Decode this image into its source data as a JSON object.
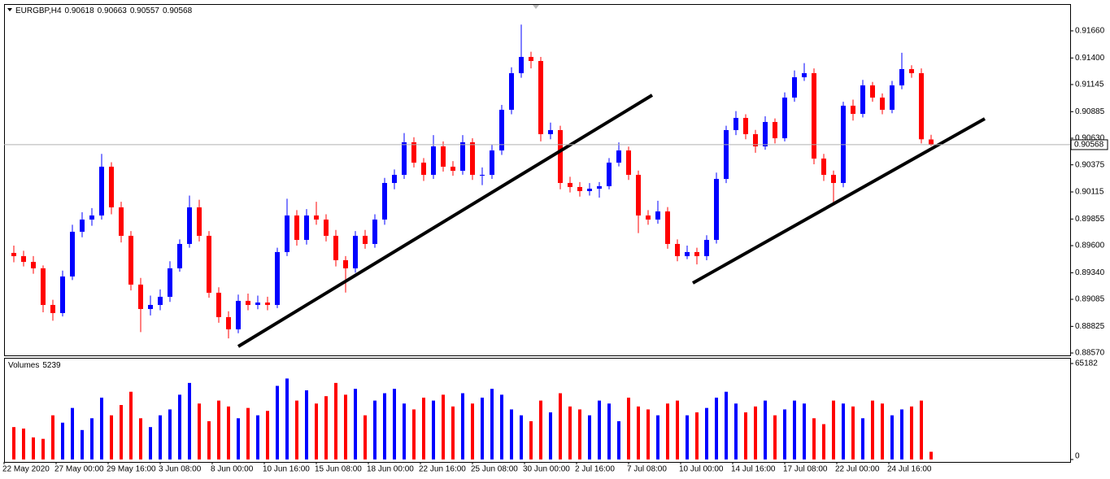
{
  "chart_data": {
    "type": "candlestick",
    "header": {
      "symbol": "EURGBP,H4",
      "values": [
        0.90618,
        0.90663,
        0.90557,
        0.90568
      ]
    },
    "up_color": "#0000ff",
    "down_color": "#ff0000",
    "ylim": [
      0.88547,
      0.91917
    ],
    "yticks": [
      {
        "value": 0.9166,
        "label": "0.91660"
      },
      {
        "value": 0.914,
        "label": "0.91400"
      },
      0.91145,
      0.90885,
      {
        "value": 0.9063,
        "label": "0.90630"
      },
      0.90375,
      0.90115,
      0.89855,
      {
        "value": 0.896,
        "label": "0.89600"
      },
      {
        "value": 0.8934,
        "label": "0.89340"
      },
      0.89085,
      0.88825,
      {
        "value": 0.8857,
        "label": "0.88570"
      }
    ],
    "x_labels": [
      "22 May 2020",
      "27 May 00:00",
      "29 May 16:00",
      "3 Jun 08:00",
      "8 Jun 00:00",
      "10 Jun 16:00",
      "15 Jun 08:00",
      "18 Jun 00:00",
      "22 Jun 16:00",
      "25 Jun 08:00",
      "30 Jun 00:00",
      "2 Jul 16:00",
      "7 Jul 08:00",
      "10 Jul 00:00",
      "14 Jul 16:00",
      "17 Jul 08:00",
      "22 Jul 00:00",
      "24 Jul 16:00"
    ],
    "candles": [
      [
        0.8953,
        0.896,
        0.8944,
        0.89499
      ],
      [
        0.89499,
        0.8955,
        0.894,
        0.89444
      ],
      [
        0.89444,
        0.895,
        0.8933,
        0.89382
      ],
      [
        0.89382,
        0.8941,
        0.8896,
        0.89031
      ],
      [
        0.89031,
        0.8908,
        0.8888,
        0.88953
      ],
      [
        0.88953,
        0.8936,
        0.8892,
        0.89304
      ],
      [
        0.89304,
        0.898,
        0.8927,
        0.89733
      ],
      [
        0.89733,
        0.8992,
        0.8968,
        0.8985
      ],
      [
        0.8985,
        0.8996,
        0.8979,
        0.89889
      ],
      [
        0.89889,
        0.9048,
        0.8985,
        0.90357
      ],
      [
        0.90357,
        0.904,
        0.899,
        0.89967
      ],
      [
        0.89967,
        0.9002,
        0.8963,
        0.89694
      ],
      [
        0.89694,
        0.8974,
        0.8917,
        0.89226
      ],
      [
        0.89226,
        0.8929,
        0.8877,
        0.88992
      ],
      [
        0.88992,
        0.8912,
        0.8893,
        0.89031
      ],
      [
        0.89031,
        0.8918,
        0.8898,
        0.89109
      ],
      [
        0.89109,
        0.8945,
        0.8906,
        0.89382
      ],
      [
        0.89382,
        0.8966,
        0.8935,
        0.89616
      ],
      [
        0.89616,
        0.9008,
        0.8958,
        0.89967
      ],
      [
        0.89967,
        0.9004,
        0.8964,
        0.89694
      ],
      [
        0.89694,
        0.8974,
        0.891,
        0.89148
      ],
      [
        0.89148,
        0.892,
        0.8886,
        0.88914
      ],
      [
        0.88914,
        0.8897,
        0.8871,
        0.88797
      ],
      [
        0.88797,
        0.8913,
        0.8876,
        0.8907
      ],
      [
        0.8907,
        0.8914,
        0.8898,
        0.89031
      ],
      [
        0.89031,
        0.8912,
        0.8899,
        0.89054
      ],
      [
        0.89054,
        0.8911,
        0.8898,
        0.89031
      ],
      [
        0.89031,
        0.8958,
        0.89,
        0.89538
      ],
      [
        0.89538,
        0.9005,
        0.895,
        0.89889
      ],
      [
        0.89889,
        0.8994,
        0.896,
        0.89655
      ],
      [
        0.89655,
        0.8995,
        0.8961,
        0.89889
      ],
      [
        0.89889,
        0.9002,
        0.898,
        0.8985
      ],
      [
        0.8985,
        0.899,
        0.8964,
        0.89694
      ],
      [
        0.89694,
        0.8975,
        0.894,
        0.8946
      ],
      [
        0.8946,
        0.895,
        0.8915,
        0.89382
      ],
      [
        0.89382,
        0.8974,
        0.8934,
        0.89694
      ],
      [
        0.89694,
        0.8975,
        0.8957,
        0.89616
      ],
      [
        0.89616,
        0.899,
        0.8958,
        0.8985
      ],
      [
        0.8985,
        0.9025,
        0.898,
        0.90201
      ],
      [
        0.90201,
        0.9033,
        0.9014,
        0.90279
      ],
      [
        0.90279,
        0.9068,
        0.9024,
        0.90591
      ],
      [
        0.90591,
        0.9064,
        0.9035,
        0.90396
      ],
      [
        0.90396,
        0.9044,
        0.9022,
        0.90279
      ],
      [
        0.90279,
        0.9066,
        0.9024,
        0.90552
      ],
      [
        0.90552,
        0.906,
        0.9031,
        0.90357
      ],
      [
        0.90357,
        0.9041,
        0.9027,
        0.90318
      ],
      [
        0.90318,
        0.9066,
        0.9028,
        0.90591
      ],
      [
        0.90591,
        0.9063,
        0.9023,
        0.90279
      ],
      [
        0.90279,
        0.9035,
        0.9018,
        0.90279
      ],
      [
        0.90279,
        0.9057,
        0.9024,
        0.90513
      ],
      [
        0.90513,
        0.9095,
        0.9047,
        0.90903
      ],
      [
        0.90903,
        0.9131,
        0.9086,
        0.91254
      ],
      [
        0.91254,
        0.9172,
        0.9121,
        0.9141
      ],
      [
        0.9141,
        0.9146,
        0.913,
        0.91371
      ],
      [
        0.91371,
        0.9141,
        0.906,
        0.90669
      ],
      [
        0.90669,
        0.9078,
        0.9062,
        0.90708
      ],
      [
        0.90708,
        0.9075,
        0.9014,
        0.90201
      ],
      [
        0.90201,
        0.9026,
        0.9011,
        0.90162
      ],
      [
        0.90162,
        0.9021,
        0.9007,
        0.90123
      ],
      [
        0.90123,
        0.902,
        0.9008,
        0.90146
      ],
      [
        0.90146,
        0.9021,
        0.9006,
        0.9017
      ],
      [
        0.9017,
        0.9044,
        0.9014,
        0.90396
      ],
      [
        0.90396,
        0.9059,
        0.9036,
        0.90513
      ],
      [
        0.90513,
        0.9055,
        0.9023,
        0.90279
      ],
      [
        0.90279,
        0.9032,
        0.8972,
        0.89889
      ],
      [
        0.89889,
        0.8994,
        0.898,
        0.8985
      ],
      [
        0.8985,
        0.9003,
        0.8981,
        0.89928
      ],
      [
        0.89928,
        0.8997,
        0.8957,
        0.89616
      ],
      [
        0.89616,
        0.8966,
        0.8945,
        0.89499
      ],
      [
        0.89499,
        0.896,
        0.8947,
        0.89538
      ],
      [
        0.89538,
        0.8958,
        0.8942,
        0.89499
      ],
      [
        0.89499,
        0.897,
        0.8946,
        0.89655
      ],
      [
        0.89655,
        0.903,
        0.8962,
        0.9024
      ],
      [
        0.9024,
        0.9075,
        0.902,
        0.90708
      ],
      [
        0.90708,
        0.9089,
        0.9066,
        0.90825
      ],
      [
        0.90825,
        0.9086,
        0.9062,
        0.90669
      ],
      [
        0.90669,
        0.9071,
        0.9049,
        0.90552
      ],
      [
        0.90552,
        0.9084,
        0.9052,
        0.90786
      ],
      [
        0.90786,
        0.9082,
        0.9058,
        0.9063
      ],
      [
        0.9063,
        0.9107,
        0.906,
        0.9102
      ],
      [
        0.9102,
        0.9128,
        0.9098,
        0.91215
      ],
      [
        0.91215,
        0.9135,
        0.9118,
        0.91254
      ],
      [
        0.91254,
        0.913,
        0.9038,
        0.90435
      ],
      [
        0.90435,
        0.9048,
        0.9022,
        0.90279
      ],
      [
        0.90279,
        0.9032,
        0.9,
        0.90201
      ],
      [
        0.90201,
        0.9098,
        0.9016,
        0.90942
      ],
      [
        0.90942,
        0.91,
        0.908,
        0.90864
      ],
      [
        0.90864,
        0.9119,
        0.9083,
        0.91137
      ],
      [
        0.91137,
        0.9117,
        0.9098,
        0.9102
      ],
      [
        0.9102,
        0.9106,
        0.9086,
        0.90903
      ],
      [
        0.90903,
        0.9118,
        0.9087,
        0.91137
      ],
      [
        0.91137,
        0.9145,
        0.911,
        0.91293
      ],
      [
        0.91293,
        0.9133,
        0.9121,
        0.91254
      ],
      [
        0.91254,
        0.913,
        0.9058,
        0.9062
      ],
      [
        0.90618,
        0.90663,
        0.90557,
        0.90568
      ]
    ],
    "volume": {
      "label": "Volumes",
      "ylim": [
        0,
        65182
      ],
      "yticks": [
        65182,
        0
      ],
      "values": [
        22000,
        21000,
        15000,
        14000,
        30000,
        25000,
        35000,
        20000,
        28000,
        42000,
        30000,
        37000,
        46000,
        28000,
        22000,
        30000,
        34000,
        44000,
        52000,
        38000,
        26000,
        40000,
        36000,
        28000,
        35000,
        30000,
        33000,
        50000,
        55000,
        40000,
        47000,
        38000,
        43000,
        52000,
        44000,
        48000,
        30000,
        40000,
        45000,
        48000,
        38000,
        34000,
        42000,
        40000,
        44000,
        36000,
        45000,
        38000,
        42000,
        48000,
        44000,
        34000,
        30000,
        26000,
        40000,
        32000,
        45000,
        36000,
        34000,
        30000,
        40000,
        38000,
        26000,
        42000,
        36000,
        34000,
        30000,
        38000,
        40000,
        30000,
        32000,
        35000,
        42000,
        46000,
        38000,
        32000,
        36000,
        40000,
        30000,
        34000,
        40000,
        38000,
        28000,
        24000,
        40000,
        38000,
        36000,
        28000,
        40000,
        38000,
        30000,
        34000,
        36000,
        40000,
        5239
      ]
    }
  }
}
